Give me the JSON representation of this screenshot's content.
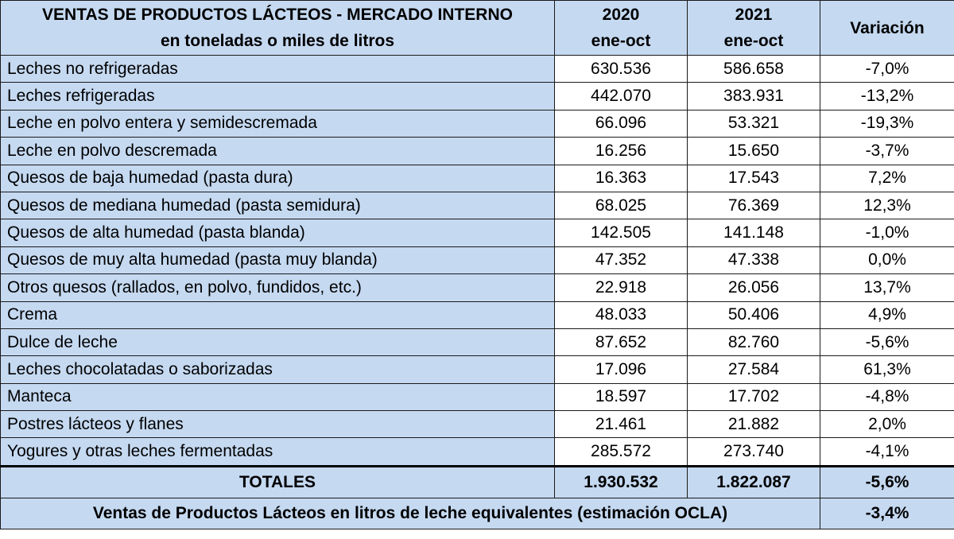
{
  "table": {
    "title_line1": "VENTAS DE PRODUCTOS LÁCTEOS - MERCADO INTERNO",
    "title_line2": "en toneladas o miles de litros",
    "col_2020_year": "2020",
    "col_2020_period": "ene-oct",
    "col_2021_year": "2021",
    "col_2021_period": "ene-oct",
    "col_variation": "Variación",
    "rows": [
      {
        "name": "Leches no refrigeradas",
        "v2020": "630.536",
        "v2021": "586.658",
        "var": "-7,0%"
      },
      {
        "name": "Leches refrigeradas",
        "v2020": "442.070",
        "v2021": "383.931",
        "var": "-13,2%"
      },
      {
        "name": "Leche en polvo entera y semidescremada",
        "v2020": "66.096",
        "v2021": "53.321",
        "var": "-19,3%"
      },
      {
        "name": "Leche en polvo descremada",
        "v2020": "16.256",
        "v2021": "15.650",
        "var": "-3,7%"
      },
      {
        "name": "Quesos de baja humedad (pasta dura)",
        "v2020": "16.363",
        "v2021": "17.543",
        "var": "7,2%"
      },
      {
        "name": "Quesos de mediana humedad (pasta semidura)",
        "v2020": "68.025",
        "v2021": "76.369",
        "var": "12,3%"
      },
      {
        "name": "Quesos de alta humedad (pasta blanda)",
        "v2020": "142.505",
        "v2021": "141.148",
        "var": "-1,0%"
      },
      {
        "name": "Quesos de muy alta humedad (pasta muy blanda)",
        "v2020": "47.352",
        "v2021": "47.338",
        "var": "0,0%"
      },
      {
        "name": "Otros quesos (rallados, en polvo, fundidos, etc.)",
        "v2020": "22.918",
        "v2021": "26.056",
        "var": "13,7%"
      },
      {
        "name": "Crema",
        "v2020": "48.033",
        "v2021": "50.406",
        "var": "4,9%"
      },
      {
        "name": "Dulce de leche",
        "v2020": "87.652",
        "v2021": "82.760",
        "var": "-5,6%"
      },
      {
        "name": "Leches chocolatadas o saborizadas",
        "v2020": "17.096",
        "v2021": "27.584",
        "var": "61,3%"
      },
      {
        "name": "Manteca",
        "v2020": "18.597",
        "v2021": "17.702",
        "var": "-4,8%"
      },
      {
        "name": "Postres lácteos y flanes",
        "v2020": "21.461",
        "v2021": "21.882",
        "var": "2,0%"
      },
      {
        "name": "Yogures y otras leches fermentadas",
        "v2020": "285.572",
        "v2021": "273.740",
        "var": "-4,1%"
      }
    ],
    "totals": {
      "label": "TOTALES",
      "v2020": "1.930.532",
      "v2021": "1.822.087",
      "var": "-5,6%"
    },
    "footer": {
      "label": "Ventas de Productos Lácteos en litros de leche equivalentes (estimación OCLA)",
      "var": "-3,4%"
    }
  }
}
